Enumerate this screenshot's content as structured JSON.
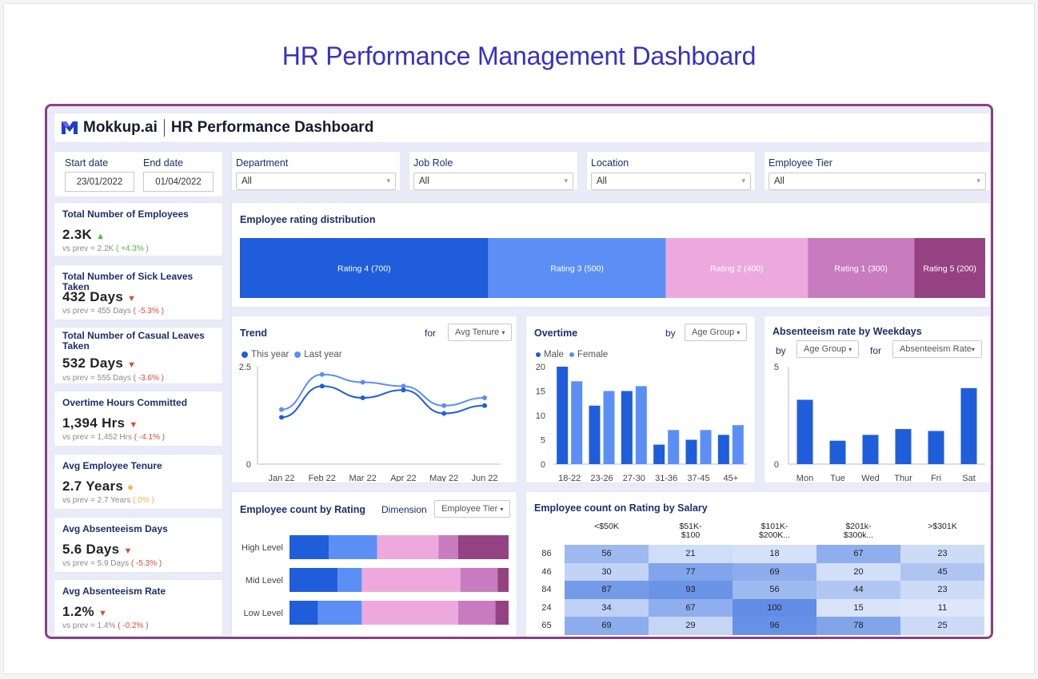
{
  "page_title": "HR Performance Management Dashboard",
  "brand": "Mokkup.ai",
  "dashboard_title": "HR Performance Dashboard",
  "dates": {
    "start_label": "Start date",
    "start_value": "23/01/2022",
    "end_label": "End date",
    "end_value": "01/04/2022"
  },
  "filters": [
    {
      "label": "Department",
      "value": "All"
    },
    {
      "label": "Job Role",
      "value": "All"
    },
    {
      "label": "Location",
      "value": "All"
    },
    {
      "label": "Employee Tier",
      "value": "All"
    }
  ],
  "kpis": [
    {
      "title": "Total Number of Employees",
      "value": "2.3K",
      "prev": "vs prev = 2.2K",
      "delta": "( +4.3% )",
      "trend": "up"
    },
    {
      "title": "Total Number of Sick Leaves Taken",
      "value": "432 Days",
      "prev": "vs prev = 455 Days",
      "delta": "( -5.3% )",
      "trend": "down"
    },
    {
      "title": "Total Number of Casual Leaves Taken",
      "value": "532 Days",
      "prev": "vs prev = 555 Days",
      "delta": "( -3.6% )",
      "trend": "down"
    },
    {
      "title": "Overtime Hours Committed",
      "value": "1,394 Hrs",
      "prev": "vs prev = 1,452 Hrs",
      "delta": "( -4.1% )",
      "trend": "down"
    },
    {
      "title": "Avg Employee Tenure",
      "value": "2.7 Years",
      "prev": "vs prev = 2.7 Years",
      "delta": "( 0% )",
      "trend": "neutral"
    },
    {
      "title": "Avg Absenteeism Days",
      "value": "5.6 Days",
      "prev": "vs prev = 5.9 Days",
      "delta": "( -5.3% )",
      "trend": "down"
    },
    {
      "title": "Avg Absenteeism Rate",
      "value": "1.2%",
      "prev": "vs prev = 1.4%",
      "delta": "( -0.2% )",
      "trend": "down"
    }
  ],
  "colors": {
    "dark_blue": "#1f5ddb",
    "light_blue": "#5b8ff6",
    "pink": "#eda9dd",
    "mauve": "#c97bbf",
    "plum": "#954282",
    "up": "#54b843",
    "down": "#e24a3a",
    "neutral": "#f5b34c"
  },
  "rating_dist": {
    "title": "Employee rating distribution",
    "segments": [
      {
        "label": "Rating 4 (700)",
        "value": 700
      },
      {
        "label": "Rating 3 (500)",
        "value": 500
      },
      {
        "label": "Rating 2 (400)",
        "value": 400
      },
      {
        "label": "Rating 1 (300)",
        "value": 300
      },
      {
        "label": "Rating 5 (200)",
        "value": 200
      }
    ]
  },
  "trend": {
    "title": "Trend",
    "for_label": "for",
    "dropdown": "Avg Tenure",
    "legend_this": "This year",
    "legend_last": "Last year"
  },
  "overtime": {
    "title": "Overtime",
    "by_label": "by",
    "dropdown": "Age Group",
    "legend_male": "Male",
    "legend_female": "Female"
  },
  "absenteeism": {
    "title": "Absenteeism rate by Weekdays",
    "by_label": "by",
    "dropdown1": "Age Group",
    "for_label": "for",
    "dropdown2": "Absenteeism Rate"
  },
  "emp_rating": {
    "title": "Employee count by Rating",
    "dim_label": "Dimension",
    "dropdown": "Employee Tier"
  },
  "salary": {
    "title": "Employee count on Rating by Salary",
    "columns": [
      "<$50K",
      "$51K-\n$100",
      "$101K-\n$200K...",
      "$201k-\n$300k...",
      ">$301K"
    ],
    "rows": [
      {
        "label": "86",
        "values": [
          56,
          21,
          18,
          67,
          23
        ]
      },
      {
        "label": "46",
        "values": [
          30,
          77,
          69,
          20,
          45
        ]
      },
      {
        "label": "84",
        "values": [
          87,
          93,
          56,
          44,
          23
        ]
      },
      {
        "label": "24",
        "values": [
          34,
          67,
          100,
          15,
          11
        ]
      },
      {
        "label": "65",
        "values": [
          69,
          29,
          96,
          78,
          25
        ]
      }
    ]
  },
  "chart_data": [
    {
      "type": "bar",
      "title": "Employee rating distribution",
      "categories": [
        "Rating 4",
        "Rating 3",
        "Rating 2",
        "Rating 1",
        "Rating 5"
      ],
      "values": [
        700,
        500,
        400,
        300,
        200
      ]
    },
    {
      "type": "line",
      "title": "Trend",
      "x": [
        "Jan 22",
        "Feb 22",
        "Mar 22",
        "Apr 22",
        "May 22",
        "Jun 22"
      ],
      "ylim": [
        0,
        2.5
      ],
      "yticks": [
        "0",
        "2.5"
      ],
      "series": [
        {
          "name": "This year",
          "values": [
            1.2,
            2.0,
            1.7,
            1.9,
            1.3,
            1.5
          ]
        },
        {
          "name": "Last year",
          "values": [
            1.4,
            2.3,
            2.1,
            2.0,
            1.5,
            1.7
          ]
        }
      ]
    },
    {
      "type": "bar",
      "title": "Overtime",
      "categories": [
        "18-22",
        "23-26",
        "27-30",
        "31-36",
        "37-45",
        "45+"
      ],
      "ylim": [
        0,
        20
      ],
      "yticks": [
        "0",
        "5",
        "10",
        "15",
        "20"
      ],
      "series": [
        {
          "name": "Male",
          "values": [
            20,
            12,
            15,
            4,
            5,
            6
          ]
        },
        {
          "name": "Female",
          "values": [
            17,
            15,
            16,
            7,
            7,
            8
          ]
        }
      ]
    },
    {
      "type": "bar",
      "title": "Absenteeism rate by Weekdays",
      "categories": [
        "Mon",
        "Tue",
        "Wed",
        "Thur",
        "Fri",
        "Sat"
      ],
      "ylim": [
        0,
        5
      ],
      "yticks": [
        "0",
        "5"
      ],
      "values": [
        3.3,
        1.2,
        1.5,
        1.8,
        1.7,
        3.9
      ]
    },
    {
      "type": "bar",
      "title": "Employee count by Rating",
      "categories": [
        "High Level",
        "Mid Level",
        "Low Level"
      ],
      "series": [
        {
          "name": "Rating 4",
          "values": [
            18,
            22,
            13
          ]
        },
        {
          "name": "Rating 3",
          "values": [
            22,
            11,
            20
          ]
        },
        {
          "name": "Rating 2",
          "values": [
            28,
            45,
            44
          ]
        },
        {
          "name": "Rating 1",
          "values": [
            9,
            17,
            17
          ]
        },
        {
          "name": "Rating 5",
          "values": [
            23,
            5,
            6
          ]
        }
      ]
    },
    {
      "type": "heatmap",
      "title": "Employee count on Rating by Salary",
      "x": [
        "<$50K",
        "$51K-$100",
        "$101K-$200K...",
        "$201k-$300k...",
        ">$301K"
      ],
      "y": [
        "86",
        "46",
        "84",
        "24",
        "65"
      ],
      "values": [
        [
          56,
          21,
          18,
          67,
          23
        ],
        [
          30,
          77,
          69,
          20,
          45
        ],
        [
          87,
          93,
          56,
          44,
          23
        ],
        [
          34,
          67,
          100,
          15,
          11
        ],
        [
          69,
          29,
          96,
          78,
          25
        ]
      ]
    }
  ]
}
